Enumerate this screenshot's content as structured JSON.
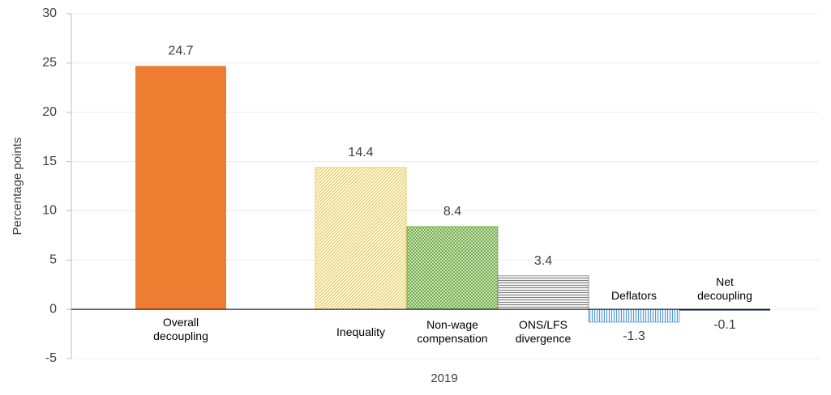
{
  "chart_data": {
    "type": "bar",
    "y_label": "Percentage points",
    "x_label": "2019",
    "categories": [
      "Overall decoupling",
      "Inequality",
      "Non-wage compensation",
      "ONS/LFS divergence",
      "Deflators",
      "Net decoupling"
    ],
    "values": [
      24.7,
      14.4,
      8.4,
      3.4,
      -1.3,
      -0.1
    ],
    "colors": [
      "#ed7d31",
      "#e8c84a",
      "#70ad47",
      "#7f7f7f",
      "#5b9bd5",
      "#203864"
    ],
    "patterns": [
      "solid",
      "diagonal",
      "crosshatch",
      "horizontal",
      "vertical",
      "solid"
    ],
    "ylim": [
      -5,
      30
    ],
    "yticks": [
      -5,
      0,
      5,
      10,
      15,
      20,
      25,
      30
    ],
    "grid": true
  }
}
